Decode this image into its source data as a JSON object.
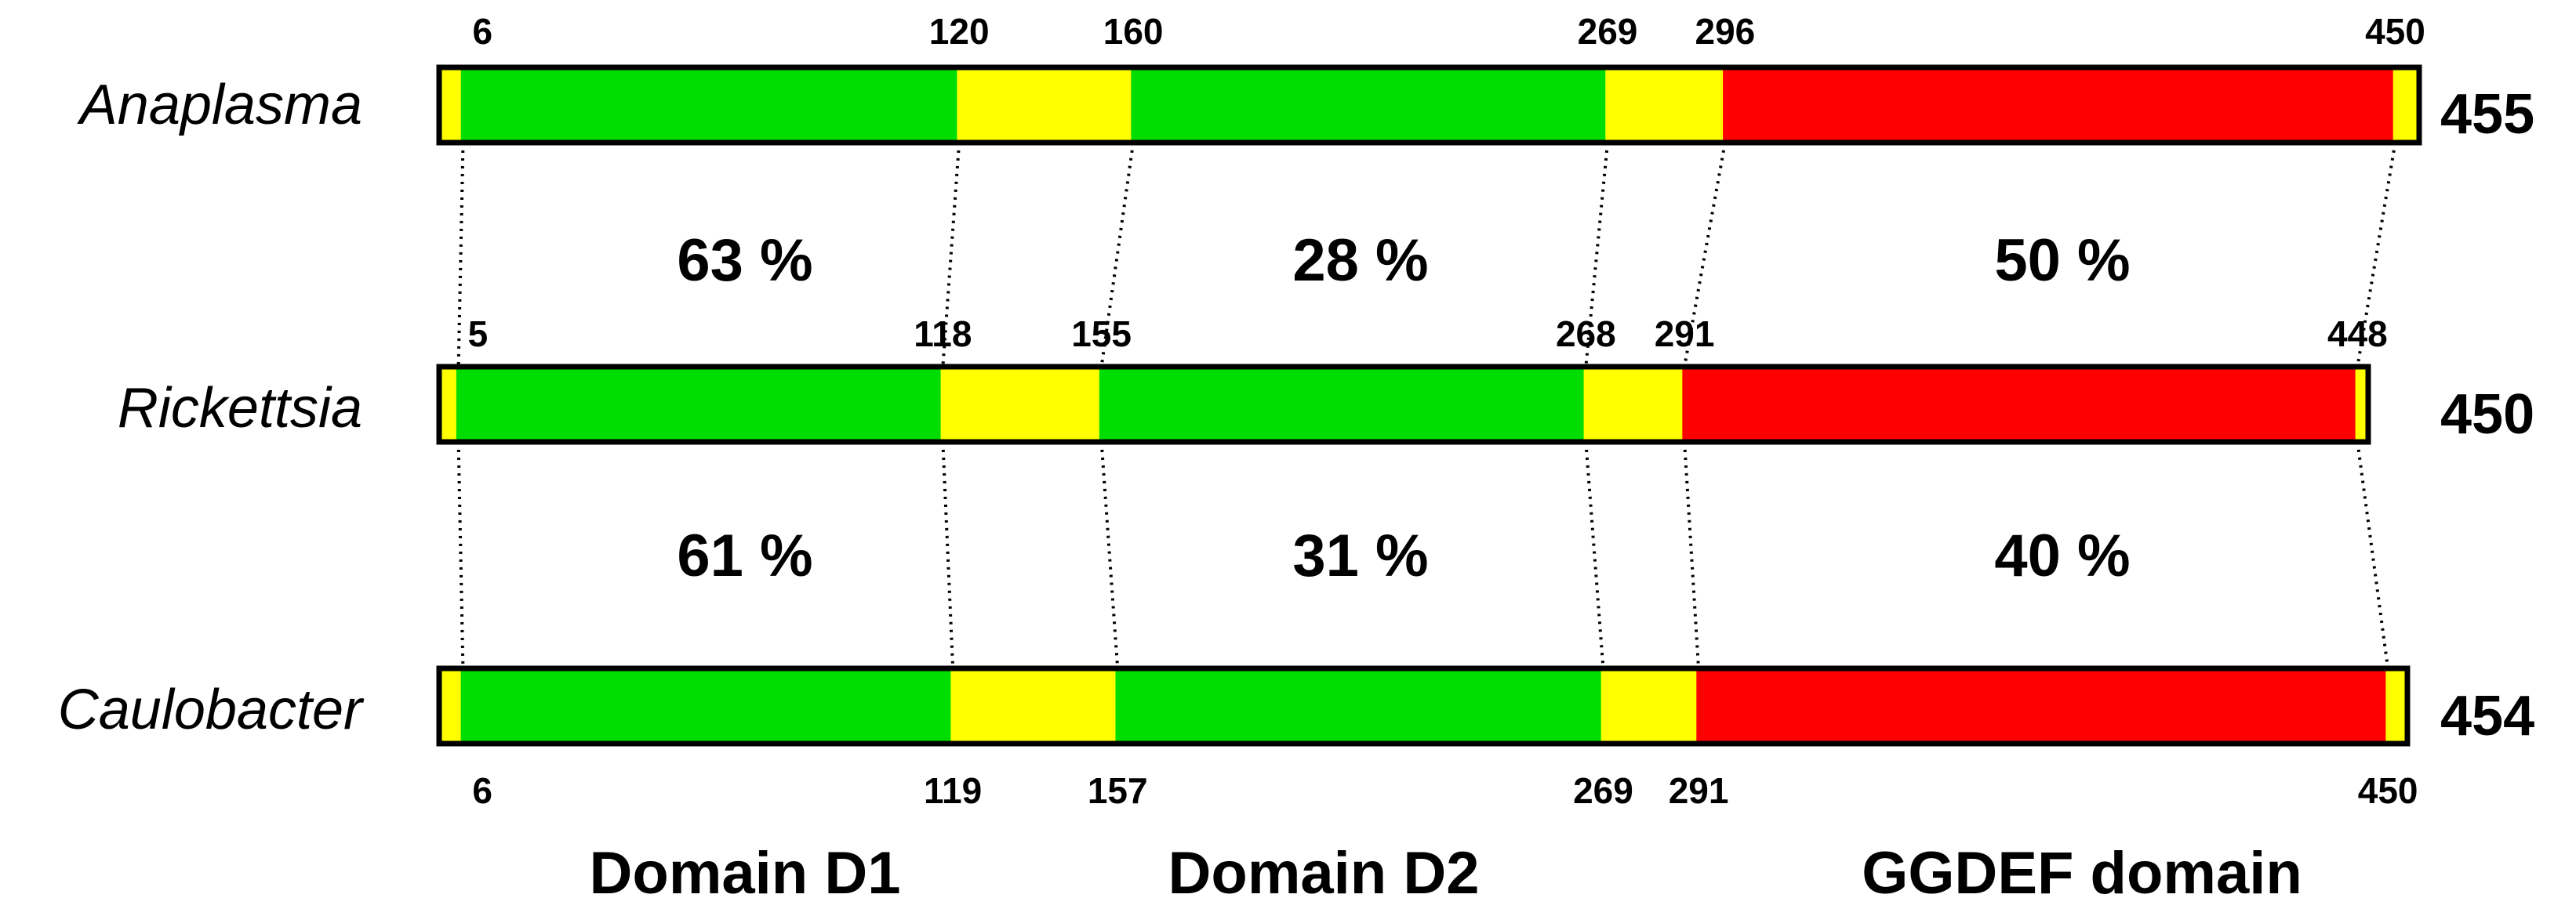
{
  "colors": {
    "linker": "#ffff00",
    "domain": "#00dd00",
    "ggdef": "#ff0000",
    "outline": "#000000",
    "background": "#ffffff"
  },
  "proteins": [
    {
      "organism": "Anaplasma",
      "length": "455",
      "segments": [
        {
          "start": 1,
          "end": 6,
          "type": "linker"
        },
        {
          "start": 6,
          "end": 120,
          "type": "domain"
        },
        {
          "start": 120,
          "end": 160,
          "type": "linker"
        },
        {
          "start": 160,
          "end": 269,
          "type": "domain"
        },
        {
          "start": 269,
          "end": 296,
          "type": "linker"
        },
        {
          "start": 296,
          "end": 450,
          "type": "ggdef"
        },
        {
          "start": 450,
          "end": 455,
          "type": "linker"
        }
      ],
      "boundary_labels": [
        "6",
        "120",
        "160",
        "269",
        "296",
        "450"
      ]
    },
    {
      "organism": "Rickettsia",
      "length": "450",
      "segments": [
        {
          "start": 1,
          "end": 5,
          "type": "linker"
        },
        {
          "start": 5,
          "end": 118,
          "type": "domain"
        },
        {
          "start": 118,
          "end": 155,
          "type": "linker"
        },
        {
          "start": 155,
          "end": 268,
          "type": "domain"
        },
        {
          "start": 268,
          "end": 291,
          "type": "linker"
        },
        {
          "start": 291,
          "end": 448,
          "type": "ggdef"
        },
        {
          "start": 448,
          "end": 450,
          "type": "linker"
        }
      ],
      "boundary_labels": [
        "5",
        "118",
        "155",
        "268",
        "291",
        "448"
      ]
    },
    {
      "organism": "Caulobacter",
      "length": "454",
      "segments": [
        {
          "start": 1,
          "end": 6,
          "type": "linker"
        },
        {
          "start": 6,
          "end": 119,
          "type": "domain"
        },
        {
          "start": 119,
          "end": 157,
          "type": "linker"
        },
        {
          "start": 157,
          "end": 269,
          "type": "domain"
        },
        {
          "start": 269,
          "end": 291,
          "type": "linker"
        },
        {
          "start": 291,
          "end": 450,
          "type": "ggdef"
        },
        {
          "start": 450,
          "end": 454,
          "type": "linker"
        }
      ],
      "boundary_labels": [
        "6",
        "119",
        "157",
        "269",
        "291",
        "450"
      ]
    }
  ],
  "identities": [
    {
      "between": "Anaplasma-Rickettsia",
      "values": [
        "63 %",
        "28 %",
        "50 %"
      ]
    },
    {
      "between": "Rickettsia-Caulobacter",
      "values": [
        "61 %",
        "31 %",
        "40 %"
      ]
    }
  ],
  "domain_labels": [
    "Domain D1",
    "Domain D2",
    "GGDEF domain"
  ]
}
